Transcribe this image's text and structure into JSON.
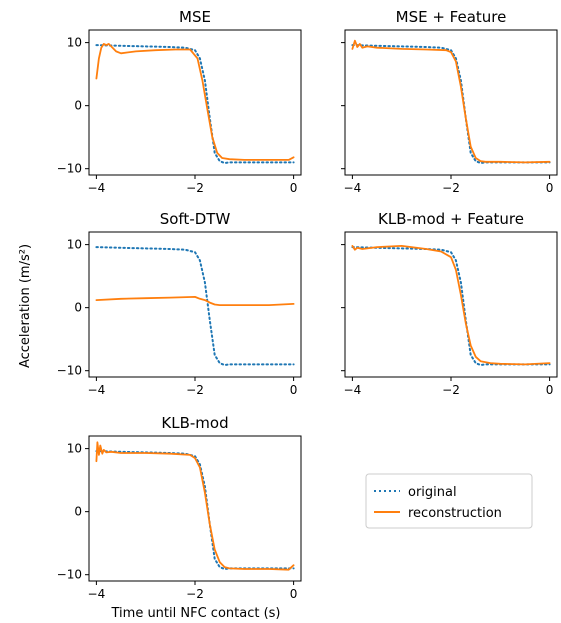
{
  "figure": {
    "ylabel": "Acceleration (m/s²)",
    "xlabel": "Time until NFC contact (s)"
  },
  "legend": {
    "placement": "right of bottom-left panel",
    "entries": [
      {
        "label": "original",
        "color": "#1f77b4",
        "style": "dotted"
      },
      {
        "label": "reconstruction",
        "color": "#ff7f0e",
        "style": "solid"
      }
    ]
  },
  "chart_data": [
    {
      "type": "line",
      "title": "MSE",
      "xlim": [
        -4.15,
        0.15
      ],
      "ylim": [
        -11,
        12
      ],
      "xticks": [
        -4,
        -2,
        0
      ],
      "yticks": [
        10,
        0,
        -10
      ],
      "grid": false,
      "series": [
        {
          "name": "original",
          "color": "#1f77b4",
          "style": "dotted",
          "x": [
            -4.0,
            -3.5,
            -3.0,
            -2.5,
            -2.2,
            -2.0,
            -1.9,
            -1.8,
            -1.7,
            -1.6,
            -1.5,
            -1.4,
            -1.3,
            -1.0,
            -0.5,
            0.0
          ],
          "y": [
            9.6,
            9.5,
            9.4,
            9.3,
            9.2,
            8.8,
            7.5,
            4.0,
            -2.0,
            -7.5,
            -8.8,
            -9.1,
            -9.0,
            -9.0,
            -9.0,
            -9.0
          ]
        },
        {
          "name": "reconstruction",
          "color": "#ff7f0e",
          "style": "solid",
          "x": [
            -4.0,
            -3.95,
            -3.9,
            -3.85,
            -3.8,
            -3.75,
            -3.7,
            -3.6,
            -3.5,
            -3.2,
            -2.8,
            -2.4,
            -2.1,
            -1.95,
            -1.85,
            -1.75,
            -1.65,
            -1.55,
            -1.45,
            -1.3,
            -1.0,
            -0.5,
            -0.1,
            0.0
          ],
          "y": [
            4.3,
            7.5,
            9.2,
            9.8,
            9.6,
            9.8,
            9.4,
            8.6,
            8.3,
            8.6,
            8.8,
            8.9,
            8.9,
            7.5,
            4.0,
            -0.5,
            -5.0,
            -7.5,
            -8.3,
            -8.5,
            -8.6,
            -8.6,
            -8.6,
            -8.2
          ]
        }
      ]
    },
    {
      "type": "line",
      "title": "MSE + Feature",
      "xlim": [
        -4.15,
        0.15
      ],
      "ylim": [
        -11,
        12
      ],
      "xticks": [
        -4,
        -2,
        0
      ],
      "yticks": [
        10,
        0,
        -10
      ],
      "grid": false,
      "series": [
        {
          "name": "original",
          "color": "#1f77b4",
          "style": "dotted",
          "x": [
            -4.0,
            -3.5,
            -3.0,
            -2.5,
            -2.2,
            -2.0,
            -1.9,
            -1.8,
            -1.7,
            -1.6,
            -1.5,
            -1.4,
            -1.3,
            -1.0,
            -0.5,
            0.0
          ],
          "y": [
            9.6,
            9.5,
            9.4,
            9.3,
            9.2,
            8.8,
            7.5,
            4.0,
            -2.0,
            -7.5,
            -8.8,
            -9.1,
            -9.0,
            -9.0,
            -9.0,
            -9.0
          ]
        },
        {
          "name": "reconstruction",
          "color": "#ff7f0e",
          "style": "solid",
          "x": [
            -4.0,
            -3.95,
            -3.9,
            -3.85,
            -3.8,
            -3.7,
            -3.5,
            -3.0,
            -2.5,
            -2.1,
            -2.0,
            -1.9,
            -1.8,
            -1.7,
            -1.6,
            -1.5,
            -1.4,
            -1.3,
            -1.0,
            -0.5,
            0.0
          ],
          "y": [
            9.0,
            10.3,
            9.3,
            9.8,
            9.2,
            9.4,
            9.2,
            9.0,
            8.9,
            8.8,
            8.5,
            7.0,
            3.0,
            -2.0,
            -6.5,
            -8.3,
            -8.8,
            -8.9,
            -8.9,
            -9.0,
            -8.9
          ]
        }
      ]
    },
    {
      "type": "line",
      "title": "Soft-DTW",
      "xlim": [
        -4.15,
        0.15
      ],
      "ylim": [
        -11,
        12
      ],
      "xticks": [
        -4,
        -2,
        0
      ],
      "yticks": [
        10,
        0,
        -10
      ],
      "grid": false,
      "series": [
        {
          "name": "original",
          "color": "#1f77b4",
          "style": "dotted",
          "x": [
            -4.0,
            -3.5,
            -3.0,
            -2.5,
            -2.2,
            -2.0,
            -1.9,
            -1.8,
            -1.7,
            -1.6,
            -1.5,
            -1.4,
            -1.3,
            -1.0,
            -0.5,
            0.0
          ],
          "y": [
            9.6,
            9.5,
            9.4,
            9.3,
            9.2,
            8.8,
            7.5,
            4.0,
            -2.0,
            -7.5,
            -8.8,
            -9.1,
            -9.0,
            -9.0,
            -9.0,
            -9.0
          ]
        },
        {
          "name": "reconstruction",
          "color": "#ff7f0e",
          "style": "solid",
          "x": [
            -4.0,
            -3.5,
            -3.0,
            -2.5,
            -2.0,
            -1.9,
            -1.8,
            -1.7,
            -1.6,
            -1.5,
            -1.0,
            -0.5,
            0.0
          ],
          "y": [
            1.2,
            1.4,
            1.5,
            1.6,
            1.7,
            1.4,
            1.2,
            0.8,
            0.5,
            0.4,
            0.4,
            0.4,
            0.6
          ]
        }
      ]
    },
    {
      "type": "line",
      "title": "KLB-mod + Feature",
      "xlim": [
        -4.15,
        0.15
      ],
      "ylim": [
        -11,
        12
      ],
      "xticks": [
        -4,
        -2,
        0
      ],
      "yticks": [
        10,
        0,
        -10
      ],
      "grid": false,
      "series": [
        {
          "name": "original",
          "color": "#1f77b4",
          "style": "dotted",
          "x": [
            -4.0,
            -3.5,
            -3.0,
            -2.5,
            -2.2,
            -2.0,
            -1.9,
            -1.8,
            -1.7,
            -1.6,
            -1.5,
            -1.4,
            -1.3,
            -1.0,
            -0.5,
            0.0
          ],
          "y": [
            9.6,
            9.5,
            9.4,
            9.3,
            9.2,
            8.8,
            7.5,
            4.0,
            -2.0,
            -7.5,
            -8.8,
            -9.1,
            -9.0,
            -9.0,
            -9.0,
            -9.0
          ]
        },
        {
          "name": "reconstruction",
          "color": "#ff7f0e",
          "style": "solid",
          "x": [
            -4.0,
            -3.95,
            -3.9,
            -3.8,
            -3.5,
            -3.0,
            -2.5,
            -2.2,
            -2.0,
            -1.9,
            -1.8,
            -1.7,
            -1.6,
            -1.5,
            -1.4,
            -1.2,
            -1.0,
            -0.5,
            0.0
          ],
          "y": [
            9.8,
            9.2,
            9.5,
            9.3,
            9.6,
            9.8,
            9.3,
            8.9,
            8.0,
            6.0,
            2.0,
            -2.5,
            -6.0,
            -7.8,
            -8.5,
            -8.8,
            -8.9,
            -9.0,
            -8.8
          ]
        }
      ]
    },
    {
      "type": "line",
      "title": "KLB-mod",
      "xlim": [
        -4.15,
        0.15
      ],
      "ylim": [
        -11,
        12
      ],
      "xticks": [
        -4,
        -2,
        0
      ],
      "yticks": [
        10,
        0,
        -10
      ],
      "grid": false,
      "series": [
        {
          "name": "original",
          "color": "#1f77b4",
          "style": "dotted",
          "x": [
            -4.0,
            -3.5,
            -3.0,
            -2.5,
            -2.2,
            -2.0,
            -1.9,
            -1.8,
            -1.7,
            -1.6,
            -1.5,
            -1.4,
            -1.3,
            -1.0,
            -0.5,
            0.0
          ],
          "y": [
            9.6,
            9.5,
            9.4,
            9.3,
            9.2,
            8.8,
            7.5,
            4.0,
            -2.0,
            -7.5,
            -8.8,
            -9.1,
            -9.0,
            -9.0,
            -9.0,
            -9.0
          ]
        },
        {
          "name": "reconstruction",
          "color": "#ff7f0e",
          "style": "solid",
          "x": [
            -4.0,
            -3.98,
            -3.95,
            -3.92,
            -3.88,
            -3.85,
            -3.8,
            -3.7,
            -3.5,
            -3.0,
            -2.5,
            -2.1,
            -2.0,
            -1.9,
            -1.8,
            -1.7,
            -1.6,
            -1.5,
            -1.4,
            -1.3,
            -1.0,
            -0.5,
            -0.1,
            0.0
          ],
          "y": [
            8.0,
            11.0,
            9.0,
            10.5,
            9.2,
            9.8,
            9.4,
            9.5,
            9.3,
            9.3,
            9.2,
            9.0,
            8.5,
            7.0,
            3.0,
            -2.0,
            -6.0,
            -8.0,
            -8.8,
            -9.0,
            -9.1,
            -9.1,
            -9.2,
            -8.5
          ]
        }
      ]
    }
  ]
}
